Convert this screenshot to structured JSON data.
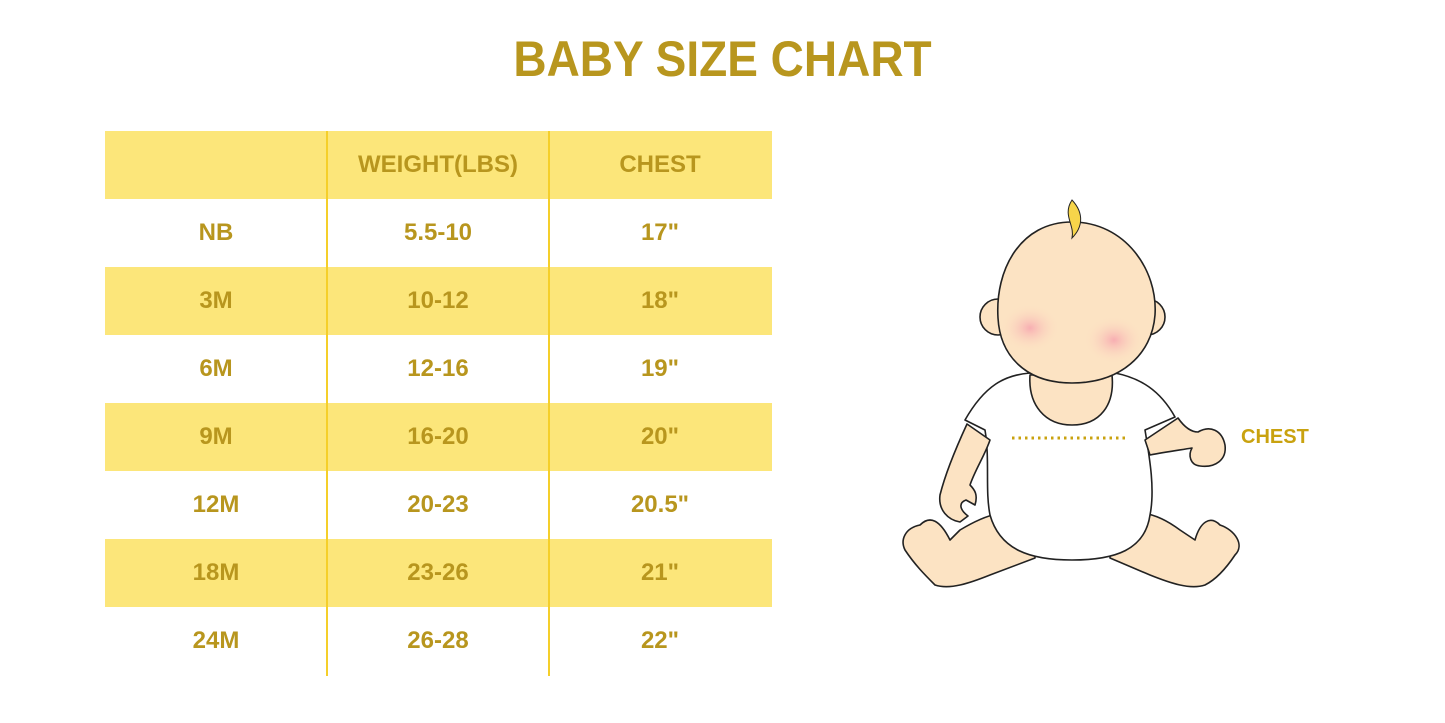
{
  "title": "BABY SIZE CHART",
  "table": {
    "headers": [
      "",
      "WEIGHT(LBS)",
      "CHEST"
    ],
    "rows": [
      [
        "NB",
        "5.5-10",
        "17\""
      ],
      [
        "3M",
        "10-12",
        "18\""
      ],
      [
        "6M",
        "12-16",
        "19\""
      ],
      [
        "9M",
        "16-20",
        "20\""
      ],
      [
        "12M",
        "20-23",
        "20.5\""
      ],
      [
        "18M",
        "23-26",
        "21\""
      ],
      [
        "24M",
        "26-28",
        "22\""
      ]
    ]
  },
  "illustration": {
    "chest_label": "CHEST"
  },
  "colors": {
    "text": "#B8961E",
    "band": "#FCE67A",
    "divider": "#F5CF2A"
  }
}
